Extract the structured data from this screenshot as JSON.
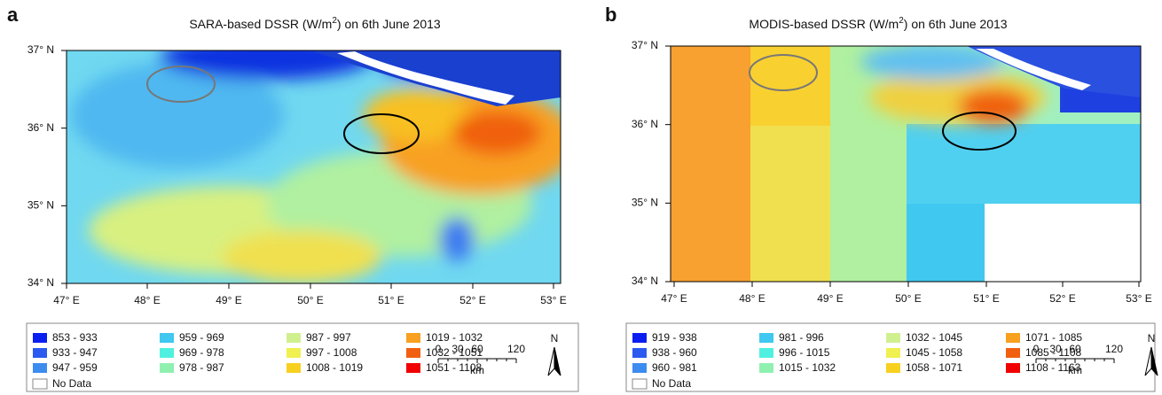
{
  "panels": [
    {
      "letter": "a",
      "title": [
        "SARA-based DSSR (W/m",
        "2",
        ") on 6th June 2013"
      ],
      "y_labels": [
        "37° N",
        "36° N",
        "35° N",
        "34° N"
      ],
      "x_labels": [
        "47° E",
        "48° E",
        "49° E",
        "50° E",
        "51° E",
        "52° E",
        "53° E"
      ],
      "legend": [
        {
          "range": "853 - 933",
          "color": "#0a1ef0"
        },
        {
          "range": "933 - 947",
          "color": "#2a5af0"
        },
        {
          "range": "947 - 959",
          "color": "#3c8cf0"
        },
        {
          "range": "959 - 969",
          "color": "#40c8f0"
        },
        {
          "range": "969 - 978",
          "color": "#50f0e0"
        },
        {
          "range": "978 - 987",
          "color": "#90f0b0"
        },
        {
          "range": "987 - 997",
          "color": "#d0f090"
        },
        {
          "range": "997 - 1008",
          "color": "#f0f050"
        },
        {
          "range": "1008 - 1019",
          "color": "#f8d020"
        },
        {
          "range": "1019 - 1032",
          "color": "#f8a020"
        },
        {
          "range": "1032 - 1051",
          "color": "#f06010"
        },
        {
          "range": "1051 - 1108",
          "color": "#f00000"
        }
      ],
      "no_data": "No Data",
      "scale_labels": [
        "0",
        "30",
        "60",
        "120"
      ],
      "scale_unit": "km",
      "north": "N"
    },
    {
      "letter": "b",
      "title": [
        "MODIS-based DSSR (W/m",
        "2",
        ") on 6th June 2013"
      ],
      "y_labels": [
        "37° N",
        "36° N",
        "35° N",
        "34° N"
      ],
      "x_labels": [
        "47° E",
        "48° E",
        "49° E",
        "50° E",
        "51° E",
        "52° E",
        "53° E"
      ],
      "legend": [
        {
          "range": "919 - 938",
          "color": "#0a1ef0"
        },
        {
          "range": "938 - 960",
          "color": "#2a5af0"
        },
        {
          "range": "960 - 981",
          "color": "#3c8cf0"
        },
        {
          "range": "981 - 996",
          "color": "#40c8f0"
        },
        {
          "range": "996 - 1015",
          "color": "#50f0e0"
        },
        {
          "range": "1015 - 1032",
          "color": "#90f0b0"
        },
        {
          "range": "1032 - 1045",
          "color": "#d0f090"
        },
        {
          "range": "1045 - 1058",
          "color": "#f0f050"
        },
        {
          "range": "1058 - 1071",
          "color": "#f8d020"
        },
        {
          "range": "1071 - 1085",
          "color": "#f8a020"
        },
        {
          "range": "1085 - 1108",
          "color": "#f06010"
        },
        {
          "range": "1108 - 1163",
          "color": "#f00000"
        }
      ],
      "no_data": "No Data",
      "scale_labels": [
        "0",
        "30",
        "60",
        "120"
      ],
      "scale_unit": "km",
      "north": "N"
    }
  ]
}
